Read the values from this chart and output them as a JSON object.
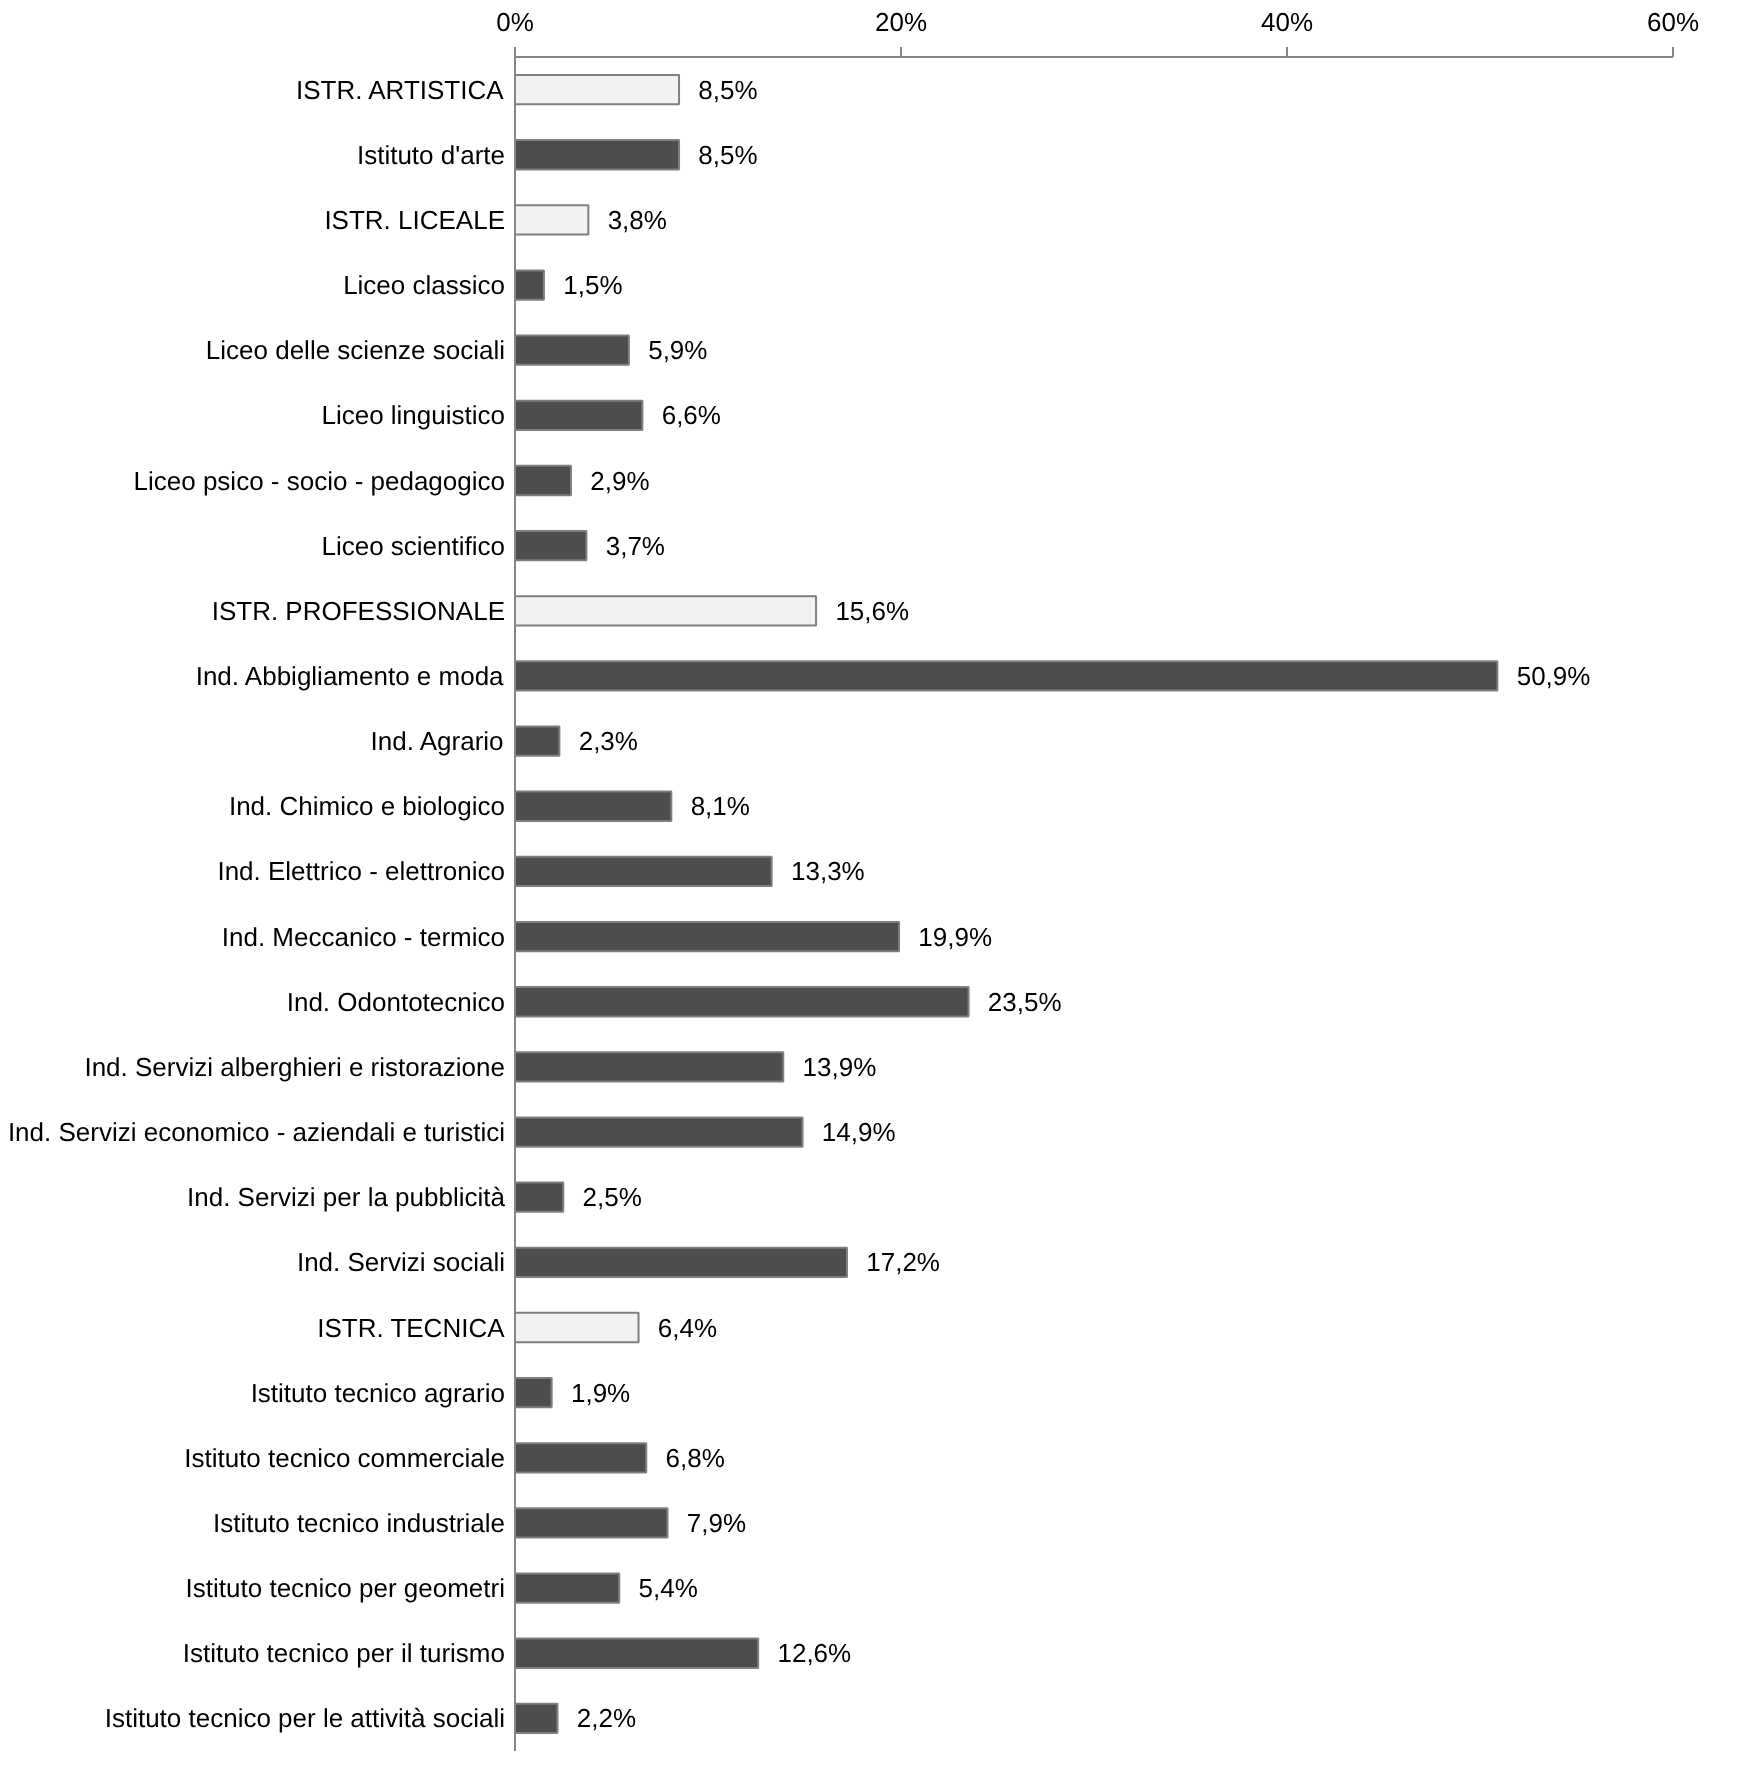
{
  "chart_data": {
    "type": "bar",
    "orientation": "horizontal",
    "categories": [
      "ISTR. ARTISTICA",
      "Istituto d'arte",
      "ISTR. LICEALE",
      "Liceo classico",
      "Liceo delle scienze sociali",
      "Liceo linguistico",
      "Liceo psico - socio - pedagogico",
      "Liceo scientifico",
      "ISTR. PROFESSIONALE",
      "Ind. Abbigliamento e moda",
      "Ind. Agrario",
      "Ind. Chimico e biologico",
      "Ind. Elettrico - elettronico",
      "Ind. Meccanico - termico",
      "Ind. Odontotecnico",
      "Ind. Servizi alberghieri e ristorazione",
      "Ind. Servizi economico - aziendali e turistici",
      "Ind. Servizi per la pubblicità",
      "Ind. Servizi sociali",
      "ISTR. TECNICA",
      "Istituto tecnico agrario",
      "Istituto tecnico commerciale",
      "Istituto tecnico industriale",
      "Istituto tecnico per geometri",
      "Istituto tecnico per il turismo",
      "Istituto tecnico per le attività sociali"
    ],
    "values": [
      8.5,
      8.5,
      3.8,
      1.5,
      5.9,
      6.6,
      2.9,
      3.7,
      15.6,
      50.9,
      2.3,
      8.1,
      13.3,
      19.9,
      23.5,
      13.9,
      14.9,
      2.5,
      17.2,
      6.4,
      1.9,
      6.8,
      7.9,
      5.4,
      12.6,
      2.2
    ],
    "value_labels": [
      "8,5%",
      "8,5%",
      "3,8%",
      "1,5%",
      "5,9%",
      "6,6%",
      "2,9%",
      "3,7%",
      "15,6%",
      "50,9%",
      "2,3%",
      "8,1%",
      "13,3%",
      "19,9%",
      "23,5%",
      "13,9%",
      "14,9%",
      "2,5%",
      "17,2%",
      "6,4%",
      "1,9%",
      "6,8%",
      "7,9%",
      "5,4%",
      "12,6%",
      "2,2%"
    ],
    "colors": [
      "#f2f2f2",
      "#4d4d4d",
      "#f2f2f2",
      "#4d4d4d",
      "#4d4d4d",
      "#4d4d4d",
      "#4d4d4d",
      "#4d4d4d",
      "#f2f2f2",
      "#4d4d4d",
      "#4d4d4d",
      "#4d4d4d",
      "#4d4d4d",
      "#4d4d4d",
      "#4d4d4d",
      "#4d4d4d",
      "#4d4d4d",
      "#4d4d4d",
      "#4d4d4d",
      "#f2f2f2",
      "#4d4d4d",
      "#4d4d4d",
      "#4d4d4d",
      "#4d4d4d",
      "#4d4d4d",
      "#4d4d4d"
    ],
    "xlim": [
      0,
      60
    ],
    "xticks": [
      {
        "value": 0,
        "label": "0%"
      },
      {
        "value": 20,
        "label": "20%"
      },
      {
        "value": 40,
        "label": "40%"
      },
      {
        "value": 60,
        "label": "60%"
      }
    ],
    "grid": false
  }
}
